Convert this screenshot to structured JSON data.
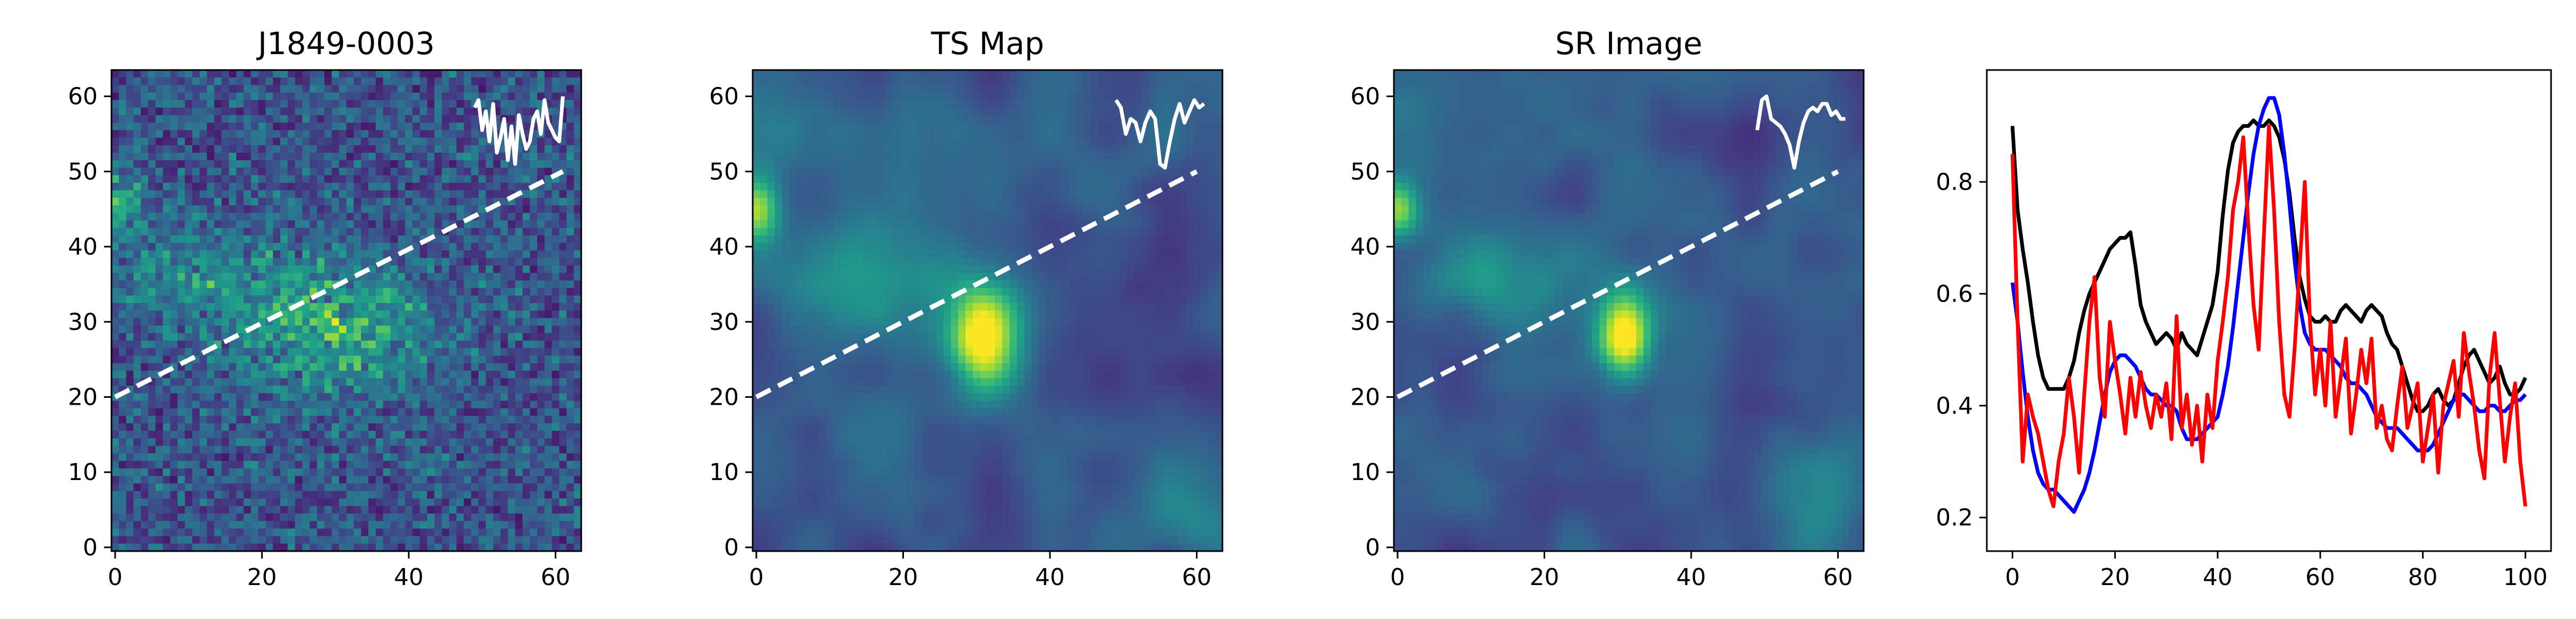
{
  "chart_data": [
    {
      "type": "heatmap",
      "title": "J1849-0003",
      "xlabel": "",
      "ylabel": "",
      "xlim": [
        -0.5,
        63.5
      ],
      "ylim": [
        63.5,
        -0.5
      ],
      "xticks": [
        0,
        20,
        40,
        60
      ],
      "yticks": [
        0,
        10,
        20,
        30,
        40,
        50,
        60
      ],
      "colormap": "viridis",
      "texture": "noisy counts",
      "blobs": [
        {
          "x": 30,
          "y": 34,
          "sx": 9,
          "sy": 6,
          "amp": 0.35
        },
        {
          "x": 12,
          "y": 27,
          "sx": 10,
          "sy": 5,
          "amp": 0.18
        },
        {
          "x": 0,
          "y": 17,
          "sx": 2.5,
          "sy": 3,
          "amp": 0.35
        }
      ],
      "overlay_line": {
        "x": [
          0,
          61
        ],
        "y": [
          20,
          50
        ],
        "color": "#ffffff",
        "style": "dashed"
      },
      "inset_profile": {
        "x_range": [
          49,
          61
        ],
        "baseline_y": 60,
        "values": [
          0.15,
          0.05,
          0.45,
          0.2,
          0.6,
          0.1,
          0.75,
          0.55,
          0.3,
          0.85,
          0.4,
          0.9,
          0.25,
          0.5,
          0.7,
          0.6,
          0.3,
          0.2,
          0.5,
          0.05,
          0.35,
          0.45,
          0.55,
          0.6,
          0.0
        ],
        "scale": 10,
        "color": "#ffffff"
      }
    },
    {
      "type": "heatmap",
      "title": "TS Map",
      "xlabel": "",
      "ylabel": "",
      "xlim": [
        -0.5,
        63.5
      ],
      "ylim": [
        63.5,
        -0.5
      ],
      "xticks": [
        0,
        20,
        40,
        60
      ],
      "yticks": [
        0,
        10,
        20,
        30,
        40,
        50,
        60
      ],
      "colormap": "viridis",
      "texture": "smooth",
      "blobs": [
        {
          "x": 31,
          "y": 35,
          "sx": 3,
          "sy": 4.5,
          "amp": 0.62
        },
        {
          "x": 29,
          "y": 33,
          "sx": 8,
          "sy": 7,
          "amp": 0.22
        },
        {
          "x": 12,
          "y": 26,
          "sx": 8,
          "sy": 5,
          "amp": 0.26
        },
        {
          "x": 0,
          "y": 18,
          "sx": 2.2,
          "sy": 3,
          "amp": 0.55
        },
        {
          "x": 58,
          "y": 58,
          "sx": 6,
          "sy": 5,
          "amp": 0.22
        },
        {
          "x": 4,
          "y": 6,
          "sx": 7,
          "sy": 5,
          "amp": 0.12
        },
        {
          "x": 22,
          "y": 10,
          "sx": 9,
          "sy": 6,
          "amp": 0.08
        },
        {
          "x": 45,
          "y": 10,
          "sx": 7,
          "sy": 6,
          "amp": 0.07
        },
        {
          "x": 15,
          "y": 50,
          "sx": 8,
          "sy": 6,
          "amp": 0.08
        }
      ],
      "overlay_line": {
        "x": [
          0,
          60
        ],
        "y": [
          20,
          50
        ],
        "color": "#ffffff",
        "style": "dashed"
      },
      "inset_profile": {
        "x_range": [
          49,
          61
        ],
        "baseline_y": 60,
        "values": [
          0.05,
          0.15,
          0.5,
          0.3,
          0.35,
          0.6,
          0.35,
          0.2,
          0.3,
          0.9,
          0.95,
          0.6,
          0.3,
          0.1,
          0.35,
          0.2,
          0.05,
          0.15,
          0.1
        ],
        "scale": 10,
        "color": "#ffffff"
      }
    },
    {
      "type": "heatmap",
      "title": "SR Image",
      "xlabel": "",
      "ylabel": "",
      "xlim": [
        -0.5,
        63.5
      ],
      "ylim": [
        63.5,
        -0.5
      ],
      "xticks": [
        0,
        20,
        40,
        60
      ],
      "yticks": [
        0,
        10,
        20,
        30,
        40,
        50,
        60
      ],
      "colormap": "viridis",
      "texture": "smooth",
      "blobs": [
        {
          "x": 31,
          "y": 35,
          "sx": 2.4,
          "sy": 4,
          "amp": 0.72
        },
        {
          "x": 28,
          "y": 32,
          "sx": 7,
          "sy": 6,
          "amp": 0.2
        },
        {
          "x": 11,
          "y": 26,
          "sx": 7,
          "sy": 4.5,
          "amp": 0.3
        },
        {
          "x": 0,
          "y": 18,
          "sx": 2,
          "sy": 2.8,
          "amp": 0.55
        },
        {
          "x": 57,
          "y": 56,
          "sx": 5,
          "sy": 5,
          "amp": 0.3
        },
        {
          "x": 4,
          "y": 6,
          "sx": 7,
          "sy": 5,
          "amp": 0.1
        },
        {
          "x": 22,
          "y": 11,
          "sx": 9,
          "sy": 6,
          "amp": 0.07
        },
        {
          "x": 16,
          "y": 52,
          "sx": 8,
          "sy": 6,
          "amp": 0.06
        }
      ],
      "overlay_line": {
        "x": [
          0,
          60
        ],
        "y": [
          20,
          50
        ],
        "color": "#ffffff",
        "style": "dashed"
      },
      "inset_profile": {
        "x_range": [
          49,
          61
        ],
        "baseline_y": 60,
        "values": [
          0.45,
          0.05,
          0.0,
          0.3,
          0.35,
          0.4,
          0.5,
          0.65,
          0.95,
          0.6,
          0.35,
          0.2,
          0.15,
          0.2,
          0.1,
          0.1,
          0.25,
          0.2,
          0.3,
          0.3
        ],
        "scale": 10,
        "color": "#ffffff"
      }
    },
    {
      "type": "line",
      "title": "",
      "xlabel": "",
      "ylabel": "",
      "xlim": [
        -5,
        105
      ],
      "ylim": [
        0.14,
        1.0
      ],
      "xticks": [
        0,
        20,
        40,
        60,
        80,
        100
      ],
      "yticks": [
        0.2,
        0.4,
        0.6,
        0.8
      ],
      "ytick_labels": [
        "0.2",
        "0.4",
        "0.6",
        "0.8"
      ],
      "series": [
        {
          "color": "#000000",
          "x": [
            0,
            1,
            2,
            3,
            4,
            5,
            6,
            7,
            8,
            9,
            10,
            11,
            12,
            13,
            14,
            15,
            16,
            17,
            18,
            19,
            20,
            21,
            22,
            23,
            24,
            25,
            26,
            27,
            28,
            29,
            30,
            31,
            32,
            33,
            34,
            35,
            36,
            37,
            38,
            39,
            40,
            41,
            42,
            43,
            44,
            45,
            46,
            47,
            48,
            49,
            50,
            51,
            52,
            53,
            54,
            55,
            56,
            57,
            58,
            59,
            60,
            61,
            62,
            63,
            64,
            65,
            66,
            67,
            68,
            69,
            70,
            71,
            72,
            73,
            74,
            75,
            76,
            77,
            78,
            79,
            80,
            81,
            82,
            83,
            84,
            85,
            86,
            87,
            88,
            89,
            90,
            91,
            92,
            93,
            94,
            95,
            96,
            97,
            98,
            99,
            100
          ],
          "values": [
            0.9,
            0.75,
            0.68,
            0.62,
            0.55,
            0.49,
            0.45,
            0.43,
            0.43,
            0.43,
            0.43,
            0.45,
            0.48,
            0.53,
            0.57,
            0.6,
            0.62,
            0.64,
            0.66,
            0.68,
            0.69,
            0.7,
            0.7,
            0.71,
            0.65,
            0.58,
            0.55,
            0.53,
            0.51,
            0.52,
            0.53,
            0.52,
            0.5,
            0.53,
            0.51,
            0.5,
            0.49,
            0.52,
            0.55,
            0.58,
            0.64,
            0.74,
            0.82,
            0.87,
            0.89,
            0.9,
            0.9,
            0.91,
            0.9,
            0.9,
            0.91,
            0.9,
            0.88,
            0.84,
            0.78,
            0.7,
            0.63,
            0.59,
            0.56,
            0.55,
            0.55,
            0.56,
            0.55,
            0.55,
            0.57,
            0.58,
            0.57,
            0.56,
            0.55,
            0.57,
            0.58,
            0.57,
            0.56,
            0.53,
            0.51,
            0.5,
            0.47,
            0.44,
            0.41,
            0.39,
            0.39,
            0.4,
            0.42,
            0.43,
            0.41,
            0.4,
            0.41,
            0.44,
            0.47,
            0.49,
            0.5,
            0.48,
            0.46,
            0.44,
            0.45,
            0.47,
            0.44,
            0.42,
            0.42,
            0.43,
            0.45
          ]
        },
        {
          "color": "#0000ff",
          "x": [
            0,
            1,
            2,
            3,
            4,
            5,
            6,
            7,
            8,
            9,
            10,
            11,
            12,
            13,
            14,
            15,
            16,
            17,
            18,
            19,
            20,
            21,
            22,
            23,
            24,
            25,
            26,
            27,
            28,
            29,
            30,
            31,
            32,
            33,
            34,
            35,
            36,
            37,
            38,
            39,
            40,
            41,
            42,
            43,
            44,
            45,
            46,
            47,
            48,
            49,
            50,
            51,
            52,
            53,
            54,
            55,
            56,
            57,
            58,
            59,
            60,
            61,
            62,
            63,
            64,
            65,
            66,
            67,
            68,
            69,
            70,
            71,
            72,
            73,
            74,
            75,
            76,
            77,
            78,
            79,
            80,
            81,
            82,
            83,
            84,
            85,
            86,
            87,
            88,
            89,
            90,
            91,
            92,
            93,
            94,
            95,
            96,
            97,
            98,
            99,
            100
          ],
          "values": [
            0.62,
            0.55,
            0.46,
            0.38,
            0.32,
            0.28,
            0.26,
            0.25,
            0.25,
            0.24,
            0.23,
            0.22,
            0.21,
            0.23,
            0.25,
            0.28,
            0.32,
            0.37,
            0.42,
            0.46,
            0.48,
            0.49,
            0.49,
            0.48,
            0.47,
            0.45,
            0.43,
            0.42,
            0.42,
            0.41,
            0.4,
            0.4,
            0.39,
            0.36,
            0.34,
            0.34,
            0.34,
            0.35,
            0.36,
            0.37,
            0.38,
            0.42,
            0.47,
            0.54,
            0.62,
            0.7,
            0.78,
            0.85,
            0.9,
            0.93,
            0.95,
            0.95,
            0.92,
            0.85,
            0.76,
            0.66,
            0.58,
            0.53,
            0.51,
            0.5,
            0.5,
            0.5,
            0.49,
            0.48,
            0.47,
            0.45,
            0.44,
            0.44,
            0.43,
            0.42,
            0.4,
            0.38,
            0.37,
            0.36,
            0.36,
            0.36,
            0.35,
            0.34,
            0.33,
            0.32,
            0.32,
            0.32,
            0.33,
            0.35,
            0.37,
            0.39,
            0.41,
            0.42,
            0.42,
            0.41,
            0.4,
            0.39,
            0.39,
            0.4,
            0.4,
            0.39,
            0.39,
            0.4,
            0.41,
            0.41,
            0.42
          ]
        },
        {
          "color": "#ff0000",
          "x": [
            0,
            1,
            2,
            3,
            4,
            5,
            6,
            7,
            8,
            9,
            10,
            11,
            12,
            13,
            14,
            15,
            16,
            17,
            18,
            19,
            20,
            21,
            22,
            23,
            24,
            25,
            26,
            27,
            28,
            29,
            30,
            31,
            32,
            33,
            34,
            35,
            36,
            37,
            38,
            39,
            40,
            41,
            42,
            43,
            44,
            45,
            46,
            47,
            48,
            49,
            50,
            51,
            52,
            53,
            54,
            55,
            56,
            57,
            58,
            59,
            60,
            61,
            62,
            63,
            64,
            65,
            66,
            67,
            68,
            69,
            70,
            71,
            72,
            73,
            74,
            75,
            76,
            77,
            78,
            79,
            80,
            81,
            82,
            83,
            84,
            85,
            86,
            87,
            88,
            89,
            90,
            91,
            92,
            93,
            94,
            95,
            96,
            97,
            98,
            99,
            100
          ],
          "values": [
            0.85,
            0.55,
            0.3,
            0.42,
            0.38,
            0.35,
            0.3,
            0.25,
            0.22,
            0.3,
            0.35,
            0.45,
            0.38,
            0.28,
            0.42,
            0.55,
            0.63,
            0.45,
            0.38,
            0.55,
            0.48,
            0.42,
            0.35,
            0.45,
            0.38,
            0.46,
            0.4,
            0.36,
            0.42,
            0.38,
            0.44,
            0.34,
            0.56,
            0.36,
            0.42,
            0.33,
            0.4,
            0.3,
            0.42,
            0.36,
            0.48,
            0.55,
            0.63,
            0.75,
            0.8,
            0.88,
            0.72,
            0.58,
            0.5,
            0.7,
            0.9,
            0.75,
            0.55,
            0.42,
            0.38,
            0.5,
            0.65,
            0.8,
            0.55,
            0.42,
            0.5,
            0.4,
            0.55,
            0.38,
            0.45,
            0.52,
            0.35,
            0.42,
            0.5,
            0.44,
            0.52,
            0.36,
            0.4,
            0.34,
            0.32,
            0.4,
            0.47,
            0.36,
            0.4,
            0.44,
            0.3,
            0.36,
            0.42,
            0.28,
            0.4,
            0.44,
            0.48,
            0.38,
            0.53,
            0.46,
            0.4,
            0.32,
            0.27,
            0.45,
            0.53,
            0.41,
            0.3,
            0.38,
            0.44,
            0.3,
            0.22
          ]
        }
      ]
    }
  ]
}
